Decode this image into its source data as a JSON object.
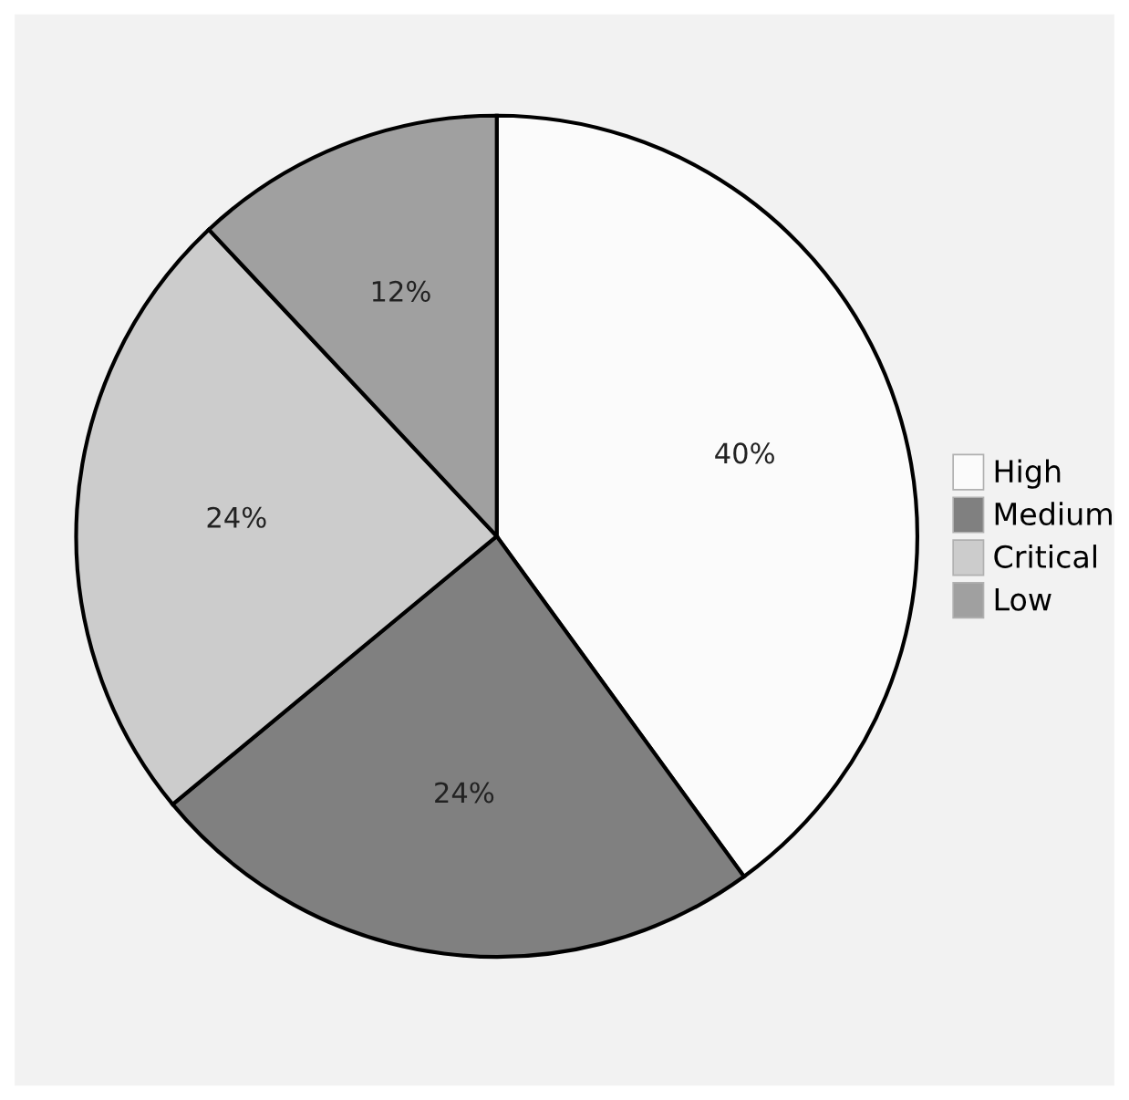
{
  "chart_data": {
    "type": "pie",
    "categories": [
      "High",
      "Medium",
      "Critical",
      "Low"
    ],
    "values": [
      40,
      24,
      24,
      12
    ],
    "colors": [
      "#fbfbfb",
      "#808080",
      "#cccccc",
      "#a0a0a0"
    ],
    "value_labels": [
      "40%",
      "24%",
      "24%",
      "12%"
    ],
    "legend": "right"
  }
}
